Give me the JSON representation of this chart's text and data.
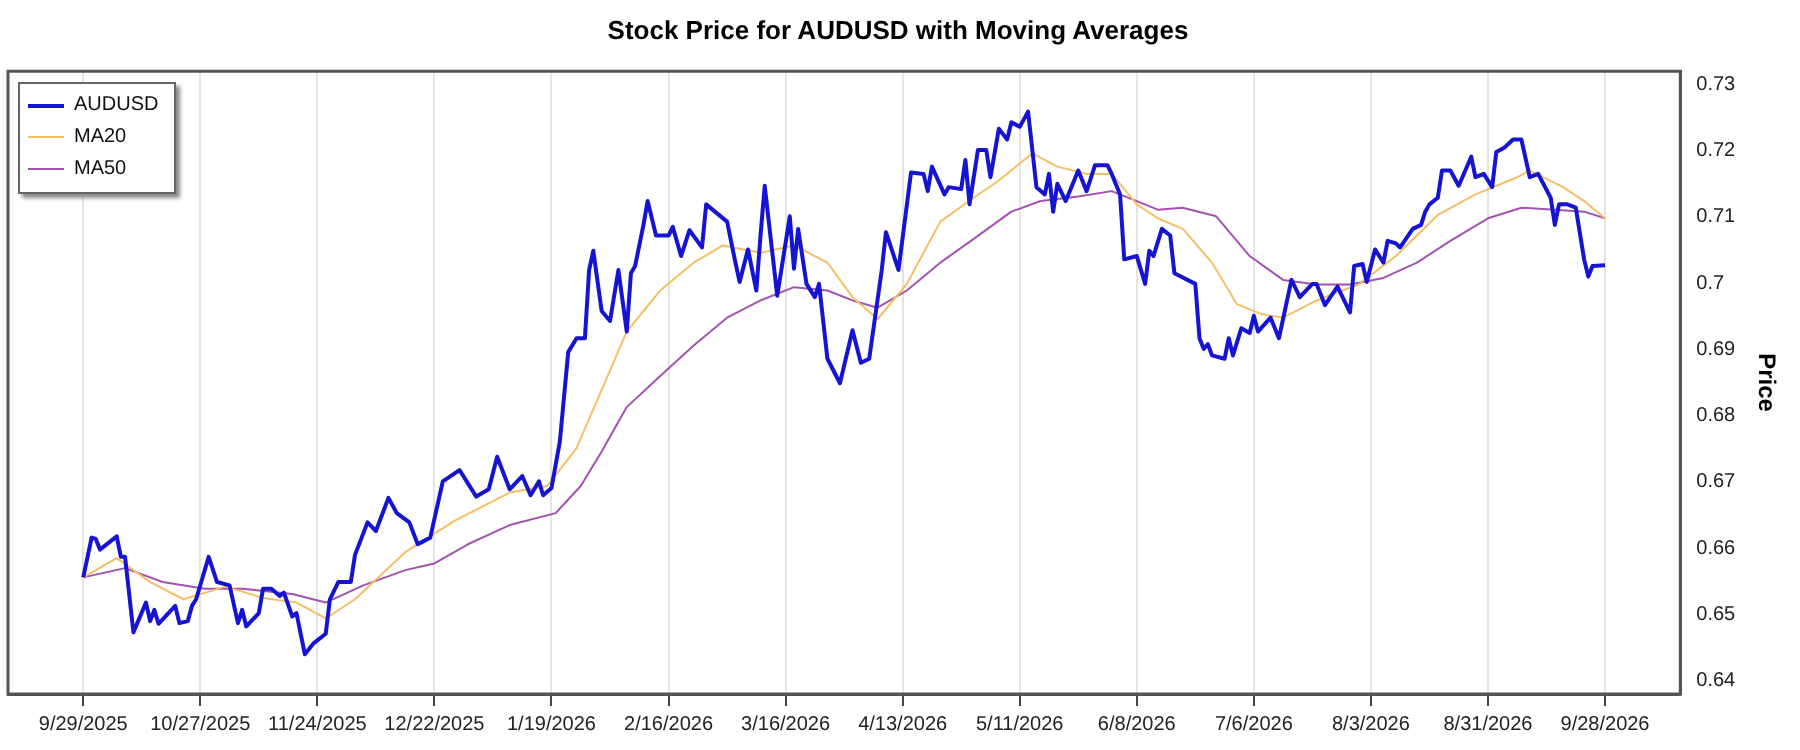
{
  "chart_data": {
    "type": "line",
    "title": "Stock Price for AUDUSD with Moving Averages",
    "ylabel": "Price",
    "xlim": [
      "2025-09-11",
      "2026-10-16"
    ],
    "xticks": [
      {
        "value": "2025-09-29",
        "label": "9/29/2025"
      },
      {
        "value": "2025-10-27",
        "label": "10/27/2025"
      },
      {
        "value": "2025-11-24",
        "label": "11/24/2025"
      },
      {
        "value": "2025-12-22",
        "label": "12/22/2025"
      },
      {
        "value": "2026-01-19",
        "label": "1/19/2026"
      },
      {
        "value": "2026-02-16",
        "label": "2/16/2026"
      },
      {
        "value": "2026-03-16",
        "label": "3/16/2026"
      },
      {
        "value": "2026-04-13",
        "label": "4/13/2026"
      },
      {
        "value": "2026-05-11",
        "label": "5/11/2026"
      },
      {
        "value": "2026-06-08",
        "label": "6/8/2026"
      },
      {
        "value": "2026-07-06",
        "label": "7/6/2026"
      },
      {
        "value": "2026-08-03",
        "label": "8/3/2026"
      },
      {
        "value": "2026-08-31",
        "label": "8/31/2026"
      },
      {
        "value": "2026-09-28",
        "label": "9/28/2026"
      }
    ],
    "ylim": [
      0.638,
      0.732
    ],
    "yticks": [
      0.64,
      0.65,
      0.66,
      0.67,
      0.68,
      0.69,
      0.7,
      0.71,
      0.72,
      0.73
    ],
    "grid": "x",
    "legend": "top left",
    "series": [
      {
        "name": "AUDUSD",
        "color": "#1414d2",
        "x": [
          "2025-09-29",
          "2025-10-01",
          "2025-10-02",
          "2025-10-03",
          "2025-10-07",
          "2025-10-08",
          "2025-10-09",
          "2025-10-11",
          "2025-10-14",
          "2025-10-15",
          "2025-10-16",
          "2025-10-17",
          "2025-10-21",
          "2025-10-22",
          "2025-10-24",
          "2025-10-25",
          "2025-10-26",
          "2025-10-29",
          "2025-10-31",
          "2025-11-03",
          "2025-11-05",
          "2025-11-06",
          "2025-11-07",
          "2025-11-10",
          "2025-11-11",
          "2025-11-13",
          "2025-11-15",
          "2025-11-16",
          "2025-11-18",
          "2025-11-19",
          "2025-11-21",
          "2025-11-23",
          "2025-11-26",
          "2025-11-27",
          "2025-11-29",
          "2025-12-02",
          "2025-12-03",
          "2025-12-06",
          "2025-12-08",
          "2025-12-11",
          "2025-12-13",
          "2025-12-16",
          "2025-12-18",
          "2025-12-21",
          "2025-12-24",
          "2025-12-28",
          "2026-01-01",
          "2026-01-04",
          "2026-01-06",
          "2026-01-09",
          "2026-01-12",
          "2026-01-14",
          "2026-01-16",
          "2026-01-17",
          "2026-01-19",
          "2026-01-21",
          "2026-01-23",
          "2026-01-25",
          "2026-01-27",
          "2026-01-28",
          "2026-01-29",
          "2026-01-31",
          "2026-02-02",
          "2026-02-04",
          "2026-02-06",
          "2026-02-07",
          "2026-02-08",
          "2026-02-10",
          "2026-02-11",
          "2026-02-13",
          "2026-02-16",
          "2026-02-17",
          "2026-02-19",
          "2026-02-21",
          "2026-02-24",
          "2026-02-25",
          "2026-03-02",
          "2026-03-04",
          "2026-03-05",
          "2026-03-07",
          "2026-03-09",
          "2026-03-10",
          "2026-03-11",
          "2026-03-14",
          "2026-03-17",
          "2026-03-18",
          "2026-03-19",
          "2026-03-21",
          "2026-03-23",
          "2026-03-24",
          "2026-03-26",
          "2026-03-29",
          "2026-04-01",
          "2026-04-03",
          "2026-04-05",
          "2026-04-08",
          "2026-04-09",
          "2026-04-12",
          "2026-04-15",
          "2026-04-18",
          "2026-04-19",
          "2026-04-20",
          "2026-04-23",
          "2026-04-24",
          "2026-04-27",
          "2026-04-28",
          "2026-04-29",
          "2026-05-01",
          "2026-05-03",
          "2026-05-04",
          "2026-05-06",
          "2026-05-08",
          "2026-05-09",
          "2026-05-11",
          "2026-05-13",
          "2026-05-15",
          "2026-05-17",
          "2026-05-18",
          "2026-05-19",
          "2026-05-20",
          "2026-05-22",
          "2026-05-25",
          "2026-05-27",
          "2026-05-29",
          "2026-06-01",
          "2026-06-02",
          "2026-06-04",
          "2026-06-05",
          "2026-06-08",
          "2026-06-10",
          "2026-06-11",
          "2026-06-12",
          "2026-06-14",
          "2026-06-16",
          "2026-06-17",
          "2026-06-22",
          "2026-06-23",
          "2026-06-24",
          "2026-06-25",
          "2026-06-26",
          "2026-06-29",
          "2026-06-30",
          "2026-07-01",
          "2026-07-03",
          "2026-07-05",
          "2026-07-06",
          "2026-07-07",
          "2026-07-10",
          "2026-07-12",
          "2026-07-15",
          "2026-07-17",
          "2026-07-20",
          "2026-07-21",
          "2026-07-23",
          "2026-07-26",
          "2026-07-29",
          "2026-07-30",
          "2026-08-01",
          "2026-08-02",
          "2026-08-04",
          "2026-08-06",
          "2026-08-07",
          "2026-08-09",
          "2026-08-10",
          "2026-08-13",
          "2026-08-15",
          "2026-08-16",
          "2026-08-17",
          "2026-08-19",
          "2026-08-20",
          "2026-08-22",
          "2026-08-24",
          "2026-08-27",
          "2026-08-28",
          "2026-08-30",
          "2026-09-01",
          "2026-09-02",
          "2026-09-04",
          "2026-09-06",
          "2026-09-08",
          "2026-09-10",
          "2026-09-12",
          "2026-09-15",
          "2026-09-16",
          "2026-09-17",
          "2026-09-19",
          "2026-09-21",
          "2026-09-23",
          "2026-09-24",
          "2026-09-25",
          "2026-09-28"
        ],
        "values": [
          0.6556,
          0.6616,
          0.6614,
          0.6598,
          0.6618,
          0.6587,
          0.6587,
          0.6473,
          0.6518,
          0.649,
          0.6507,
          0.6486,
          0.6513,
          0.6487,
          0.649,
          0.6513,
          0.6523,
          0.6587,
          0.6549,
          0.6544,
          0.6487,
          0.6507,
          0.6482,
          0.6502,
          0.6539,
          0.6539,
          0.6528,
          0.6533,
          0.6497,
          0.6502,
          0.644,
          0.6456,
          0.6471,
          0.6523,
          0.6549,
          0.6549,
          0.659,
          0.6639,
          0.6626,
          0.6676,
          0.6653,
          0.6639,
          0.6606,
          0.6616,
          0.6701,
          0.6718,
          0.6678,
          0.6689,
          0.6738,
          0.6689,
          0.6709,
          0.668,
          0.6701,
          0.668,
          0.6691,
          0.6761,
          0.6896,
          0.6917,
          0.6917,
          0.702,
          0.7049,
          0.6958,
          0.6943,
          0.702,
          0.6927,
          0.7015,
          0.7026,
          0.7088,
          0.7124,
          0.7072,
          0.7072,
          0.7085,
          0.7041,
          0.708,
          0.7054,
          0.7119,
          0.7093,
          0.7031,
          0.7002,
          0.7051,
          0.6989,
          0.7072,
          0.7147,
          0.6981,
          0.7101,
          0.7022,
          0.7082,
          0.6999,
          0.6979,
          0.6999,
          0.6886,
          0.6849,
          0.6929,
          0.688,
          0.6886,
          0.702,
          0.7077,
          0.702,
          0.7167,
          0.7165,
          0.7139,
          0.7176,
          0.7134,
          0.7145,
          0.7142,
          0.7186,
          0.7119,
          0.7201,
          0.7201,
          0.716,
          0.7233,
          0.7217,
          0.7243,
          0.7236,
          0.7259,
          0.7145,
          0.7134,
          0.7165,
          0.7108,
          0.715,
          0.7124,
          0.717,
          0.7139,
          0.7178,
          0.7178,
          0.7165,
          0.7134,
          0.7036,
          0.7041,
          0.6999,
          0.7049,
          0.7041,
          0.7082,
          0.7072,
          0.7015,
          0.6999,
          0.6917,
          0.6901,
          0.6908,
          0.6891,
          0.6886,
          0.6917,
          0.6891,
          0.6932,
          0.6925,
          0.6951,
          0.6927,
          0.6948,
          0.6917,
          0.7005,
          0.6979,
          0.6999,
          0.6999,
          0.6967,
          0.6995,
          0.6956,
          0.7026,
          0.7029,
          0.7002,
          0.7051,
          0.7031,
          0.7064,
          0.706,
          0.7054,
          0.7082,
          0.7088,
          0.7108,
          0.7119,
          0.7129,
          0.717,
          0.717,
          0.7147,
          0.7191,
          0.716,
          0.7165,
          0.7145,
          0.7198,
          0.7205,
          0.7217,
          0.7217,
          0.716,
          0.7165,
          0.7129,
          0.7088,
          0.7119,
          0.7119,
          0.7114,
          0.7036,
          0.701,
          0.7026,
          0.7027
        ]
      },
      {
        "name": "MA20",
        "color": "#f4bf66",
        "x": [
          "2025-09-29",
          "2025-10-07",
          "2025-10-15",
          "2025-10-23",
          "2025-11-02",
          "2025-11-11",
          "2025-11-19",
          "2025-11-26",
          "2025-12-03",
          "2025-12-15",
          "2025-12-27",
          "2026-01-09",
          "2026-01-18",
          "2026-01-25",
          "2026-01-31",
          "2026-02-06",
          "2026-02-14",
          "2026-02-22",
          "2026-03-01",
          "2026-03-10",
          "2026-03-18",
          "2026-03-26",
          "2026-04-01",
          "2026-04-07",
          "2026-04-14",
          "2026-04-22",
          "2026-04-30",
          "2026-05-06",
          "2026-05-14",
          "2026-05-20",
          "2026-05-27",
          "2026-06-02",
          "2026-06-08",
          "2026-06-13",
          "2026-06-19",
          "2026-06-26",
          "2026-07-02",
          "2026-07-08",
          "2026-07-13",
          "2026-07-21",
          "2026-07-31",
          "2026-08-09",
          "2026-08-19",
          "2026-08-28",
          "2026-09-07",
          "2026-09-10",
          "2026-09-18",
          "2026-09-23",
          "2026-09-28"
        ],
        "values": [
          0.6556,
          0.6585,
          0.6549,
          0.6523,
          0.6542,
          0.6525,
          0.6518,
          0.6494,
          0.6523,
          0.6594,
          0.6642,
          0.6684,
          0.6694,
          0.6751,
          0.6839,
          0.6927,
          0.6989,
          0.7031,
          0.7057,
          0.7046,
          0.7057,
          0.7031,
          0.6979,
          0.6946,
          0.6999,
          0.7093,
          0.7129,
          0.7155,
          0.7196,
          0.7176,
          0.7165,
          0.7165,
          0.7119,
          0.7098,
          0.7082,
          0.7031,
          0.6968,
          0.6953,
          0.6948,
          0.6974,
          0.6998,
          0.7041,
          0.7103,
          0.7134,
          0.716,
          0.717,
          0.7145,
          0.7124,
          0.7098
        ]
      },
      {
        "name": "MA50",
        "color": "#a452b2",
        "x": [
          "2025-09-29",
          "2025-10-09",
          "2025-10-18",
          "2025-10-28",
          "2025-11-06",
          "2025-11-18",
          "2025-11-26",
          "2025-12-05",
          "2025-12-15",
          "2025-12-22",
          "2025-12-30",
          "2026-01-09",
          "2026-01-20",
          "2026-01-26",
          "2026-01-31",
          "2026-02-06",
          "2026-02-14",
          "2026-02-22",
          "2026-03-02",
          "2026-03-10",
          "2026-03-18",
          "2026-03-26",
          "2026-04-01",
          "2026-04-07",
          "2026-04-14",
          "2026-04-22",
          "2026-04-30",
          "2026-05-09",
          "2026-05-16",
          "2026-05-25",
          "2026-06-02",
          "2026-06-08",
          "2026-06-13",
          "2026-06-19",
          "2026-06-27",
          "2026-07-05",
          "2026-07-13",
          "2026-07-21",
          "2026-07-29",
          "2026-08-06",
          "2026-08-14",
          "2026-08-22",
          "2026-08-31",
          "2026-09-08",
          "2026-09-16",
          "2026-09-23",
          "2026-09-28"
        ],
        "values": [
          0.6556,
          0.657,
          0.6549,
          0.6539,
          0.6539,
          0.6531,
          0.6518,
          0.6544,
          0.6567,
          0.6577,
          0.6606,
          0.6635,
          0.6653,
          0.6694,
          0.6746,
          0.6813,
          0.686,
          0.6906,
          0.6948,
          0.6974,
          0.6994,
          0.6989,
          0.6974,
          0.6963,
          0.6989,
          0.7031,
          0.7067,
          0.7108,
          0.7124,
          0.7131,
          0.7139,
          0.7124,
          0.7111,
          0.7114,
          0.7101,
          0.7041,
          0.7005,
          0.6998,
          0.6998,
          0.7008,
          0.7031,
          0.7064,
          0.7098,
          0.7114,
          0.7111,
          0.7108,
          0.7098
        ]
      }
    ]
  }
}
